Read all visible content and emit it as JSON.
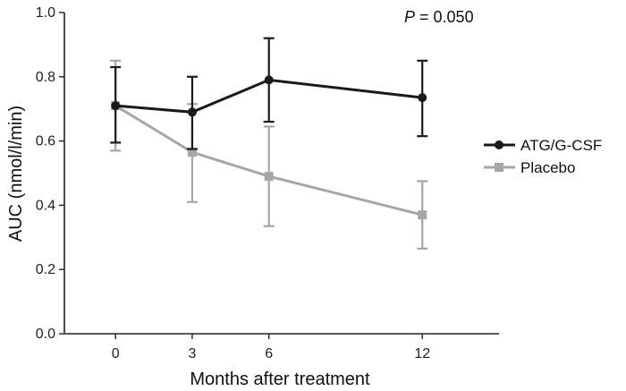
{
  "chart_data": {
    "type": "line",
    "xlabel": "Months after treatment",
    "ylabel": "AUC (nmol/l/min)",
    "x": [
      0,
      3,
      6,
      12
    ],
    "x_ticks": [
      "0",
      "3",
      "6",
      "12"
    ],
    "xlim": [
      -2,
      15
    ],
    "ylim": [
      0,
      1.0
    ],
    "y_ticks": [
      "0.0",
      "0.2",
      "0.4",
      "0.6",
      "0.8",
      "1.0"
    ],
    "annotation": {
      "italic": "P",
      "rest": " = 0.050"
    },
    "legend_position": "right",
    "series": [
      {
        "name": "ATG/G-CSF",
        "color": "#1a1a1a",
        "marker": "circle",
        "values": [
          0.71,
          0.69,
          0.79,
          0.735
        ],
        "upper": [
          0.83,
          0.8,
          0.92,
          0.85
        ],
        "lower": [
          0.595,
          0.575,
          0.66,
          0.615
        ]
      },
      {
        "name": "Placebo",
        "color": "#a6a6a6",
        "marker": "square",
        "values": [
          0.71,
          0.565,
          0.49,
          0.37
        ],
        "upper": [
          0.85,
          0.715,
          0.645,
          0.475
        ],
        "lower": [
          0.57,
          0.41,
          0.335,
          0.265
        ]
      }
    ]
  }
}
